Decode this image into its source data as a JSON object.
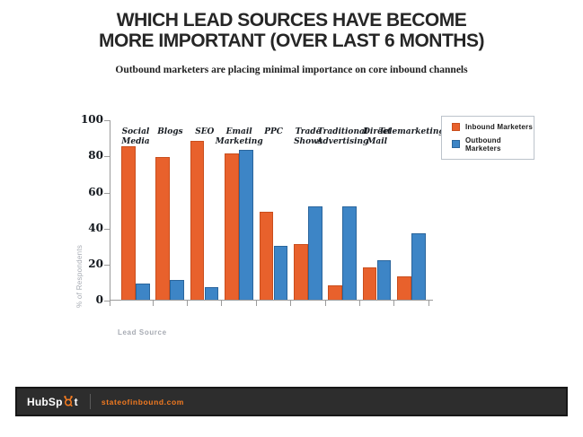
{
  "header": {
    "title_line1": "WHICH LEAD SOURCES HAVE BECOME",
    "title_line2": "MORE IMPORTANT (OVER LAST 6 MONTHS)",
    "subtitle": "Outbound marketers are placing minimal importance on core inbound channels"
  },
  "chart_data": {
    "type": "bar",
    "title": "WHICH LEAD SOURCES HAVE BECOME MORE IMPORTANT (OVER LAST 6 MONTHS)",
    "xlabel": "Lead Source",
    "ylabel": "% of Respondents",
    "ylim": [
      0,
      100
    ],
    "yticks": [
      0,
      20,
      40,
      60,
      80,
      100
    ],
    "grid": false,
    "legend_position": "top-right",
    "categories": [
      "Social\nMedia",
      "Blogs",
      "SEO",
      "Email\nMarketing",
      "PPC",
      "Trade\nShows",
      "Traditional\nAdvertising",
      "Direct\nMail",
      "Telemarketing"
    ],
    "series": [
      {
        "name": "Inbound Marketers",
        "color": "#E8612C",
        "border_color": "#c94e1d",
        "values": [
          85,
          79,
          88,
          81,
          49,
          31,
          8,
          18,
          13
        ]
      },
      {
        "name": "Outbound Marketers",
        "color": "#3D85C6",
        "border_color": "#2a659c",
        "values": [
          9,
          11,
          7,
          83,
          30,
          52,
          52,
          22,
          37
        ]
      }
    ]
  },
  "footer": {
    "brand": "HubSpot",
    "brand_prefix": "HubSp",
    "brand_suffix": "t",
    "url": "stateofinbound.com",
    "bar_color": "#2d2d2d",
    "accent_color": "#f47b20"
  }
}
